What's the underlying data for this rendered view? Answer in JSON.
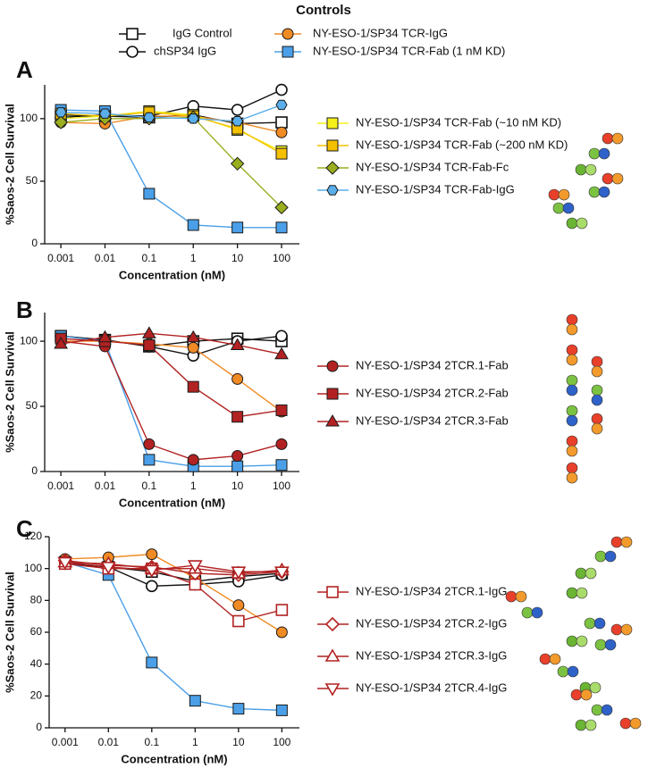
{
  "legend": {
    "title": "Controls",
    "series": [
      {
        "name": "IgG Control",
        "color": "#111111",
        "marker": "square",
        "open": true
      },
      {
        "name": "chSP34 IgG",
        "color": "#111111",
        "marker": "circle",
        "open": true
      },
      {
        "name": "NY-ESO-1/SP34 TCR-IgG",
        "color": "#f08a24",
        "marker": "circle",
        "open": false
      },
      {
        "name": "NY-ESO-1/SP34 TCR-Fab (1 nM KD)",
        "color": "#4a9fe8",
        "marker": "square",
        "open": false
      }
    ]
  },
  "chart_data": [
    {
      "type": "line",
      "panel": "A",
      "xscale": "log",
      "xlabel": "Concentration (nM)",
      "ylabel": "%Saos-2 Cell Survival",
      "x": [
        0.001,
        0.01,
        0.1,
        1,
        10,
        100
      ],
      "xlim": [
        0.00043,
        254
      ],
      "xticks": [
        0.001,
        0.01,
        0.1,
        1,
        10,
        100
      ],
      "ylim": [
        0,
        127
      ],
      "yticks": [
        0,
        50,
        100
      ],
      "control_values": [
        [
          103,
          102,
          101,
          103,
          96,
          97
        ],
        [
          101,
          103,
          102,
          110,
          107,
          123
        ],
        [
          97,
          96,
          102,
          102,
          97,
          89
        ],
        [
          107,
          106,
          40,
          15,
          13,
          13
        ]
      ],
      "series": [
        {
          "name": "NY-ESO-1/SP34 TCR-Fab (~10 nM KD)",
          "color": "#f5f01a",
          "marker": "square",
          "open": false,
          "values": [
            100,
            102,
            106,
            103,
            91,
            74
          ]
        },
        {
          "name": "NY-ESO-1/SP34 TCR-Fab (~200 nM KD)",
          "color": "#f5c000",
          "marker": "square",
          "open": false,
          "values": [
            104,
            102,
            105,
            102,
            92,
            72
          ]
        },
        {
          "name": "NY-ESO-1/SP34 TCR-Fab-Fc",
          "color": "#9aae1e",
          "marker": "diamond",
          "open": false,
          "values": [
            97,
            100,
            100,
            101,
            64,
            29
          ]
        },
        {
          "name": "NY-ESO-1/SP34 TCR-Fab-IgG",
          "color": "#5aaeea",
          "marker": "hexagon",
          "open": false,
          "values": [
            105,
            104,
            101,
            100,
            98,
            111
          ]
        }
      ]
    },
    {
      "type": "line",
      "panel": "B",
      "xscale": "log",
      "xlabel": "Concentration (nM)",
      "ylabel": "%Saos-2 Cell Survival",
      "x": [
        0.001,
        0.01,
        0.1,
        1,
        10,
        100
      ],
      "xlim": [
        0.00043,
        254
      ],
      "xticks": [
        0.001,
        0.01,
        0.1,
        1,
        10,
        100
      ],
      "ylim": [
        0,
        122
      ],
      "yticks": [
        0,
        50,
        100
      ],
      "control_values": [
        [
          104,
          101,
          96,
          100,
          102,
          100
        ],
        [
          104,
          101,
          96,
          89,
          100,
          104
        ],
        [
          100,
          100,
          98,
          95,
          71,
          46
        ],
        [
          104,
          100,
          9,
          4,
          4,
          5
        ]
      ],
      "series": [
        {
          "name": "NY-ESO-1/SP34 2TCR.1-Fab",
          "color": "#b22222",
          "marker": "circle",
          "open": false,
          "values": [
            100,
            96,
            21,
            9,
            12,
            21
          ]
        },
        {
          "name": "NY-ESO-1/SP34 2TCR.2-Fab",
          "color": "#b22222",
          "marker": "square",
          "open": false,
          "values": [
            102,
            100,
            97,
            65,
            42,
            47
          ]
        },
        {
          "name": "NY-ESO-1/SP34 2TCR.3-Fab",
          "color": "#b22222",
          "marker": "triangle",
          "open": false,
          "values": [
            98,
            103,
            106,
            103,
            97,
            90
          ]
        }
      ]
    },
    {
      "type": "line",
      "panel": "C",
      "xscale": "log",
      "xlabel": "Concentration (nM)",
      "ylabel": "%Saos-2 Cell Survival",
      "x": [
        0.001,
        0.01,
        0.1,
        1,
        10,
        100
      ],
      "xlim": [
        0.00043,
        254
      ],
      "xticks": [
        0.001,
        0.01,
        0.1,
        1,
        10,
        100
      ],
      "ylim": [
        0,
        120
      ],
      "yticks": [
        0,
        20,
        40,
        60,
        80,
        100,
        120
      ],
      "control_values": [
        [
          104,
          101,
          98,
          92,
          95,
          97
        ],
        [
          103,
          101,
          89,
          90,
          92,
          96
        ],
        [
          106,
          107,
          109,
          94,
          77,
          60
        ],
        [
          104,
          96,
          41,
          17,
          12,
          11
        ]
      ],
      "series": [
        {
          "name": "NY-ESO-1/SP34 2TCR.1-IgG",
          "color": "#b22222",
          "marker": "square",
          "open": true,
          "values": [
            103,
            100,
            100,
            90,
            67,
            74
          ]
        },
        {
          "name": "NY-ESO-1/SP34 2TCR.2-IgG",
          "color": "#b22222",
          "marker": "diamond",
          "open": true,
          "values": [
            105,
            102,
            101,
            97,
            96,
            98
          ]
        },
        {
          "name": "NY-ESO-1/SP34 2TCR.3-IgG",
          "color": "#b22222",
          "marker": "triangle",
          "open": true,
          "values": [
            104,
            103,
            100,
            100,
            97,
            99
          ]
        },
        {
          "name": "NY-ESO-1/SP34 2TCR.4-IgG",
          "color": "#b22222",
          "marker": "triangle-down",
          "open": true,
          "values": [
            104,
            101,
            99,
            102,
            98,
            98
          ]
        }
      ]
    }
  ]
}
